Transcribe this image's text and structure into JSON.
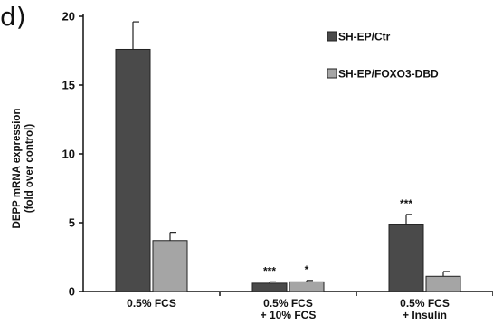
{
  "panel_label": "d)",
  "chart_data": {
    "type": "bar",
    "ylabel_lines": [
      "DEPP mRNA expression",
      "(fold over control)"
    ],
    "ylim": [
      0,
      20
    ],
    "yticks": [
      0,
      5,
      10,
      15,
      20
    ],
    "categories": [
      [
        "0.5% FCS"
      ],
      [
        "0.5% FCS",
        "+ 10% FCS"
      ],
      [
        "0.5% FCS",
        "+ Insulin"
      ]
    ],
    "series": [
      {
        "name": "SH-EP/Ctr",
        "color": "#4a4a4a",
        "values": [
          17.6,
          0.6,
          4.9
        ],
        "errors": [
          2.0,
          0.1,
          0.7
        ],
        "annotations": [
          "",
          "***",
          "***"
        ]
      },
      {
        "name": "SH-EP/FOXO3-DBD",
        "color": "#a5a5a5",
        "values": [
          3.7,
          0.7,
          1.1
        ],
        "errors": [
          0.6,
          0.1,
          0.35
        ],
        "annotations": [
          "",
          "*",
          ""
        ]
      }
    ],
    "legend_position": "top-right",
    "grid": false
  }
}
